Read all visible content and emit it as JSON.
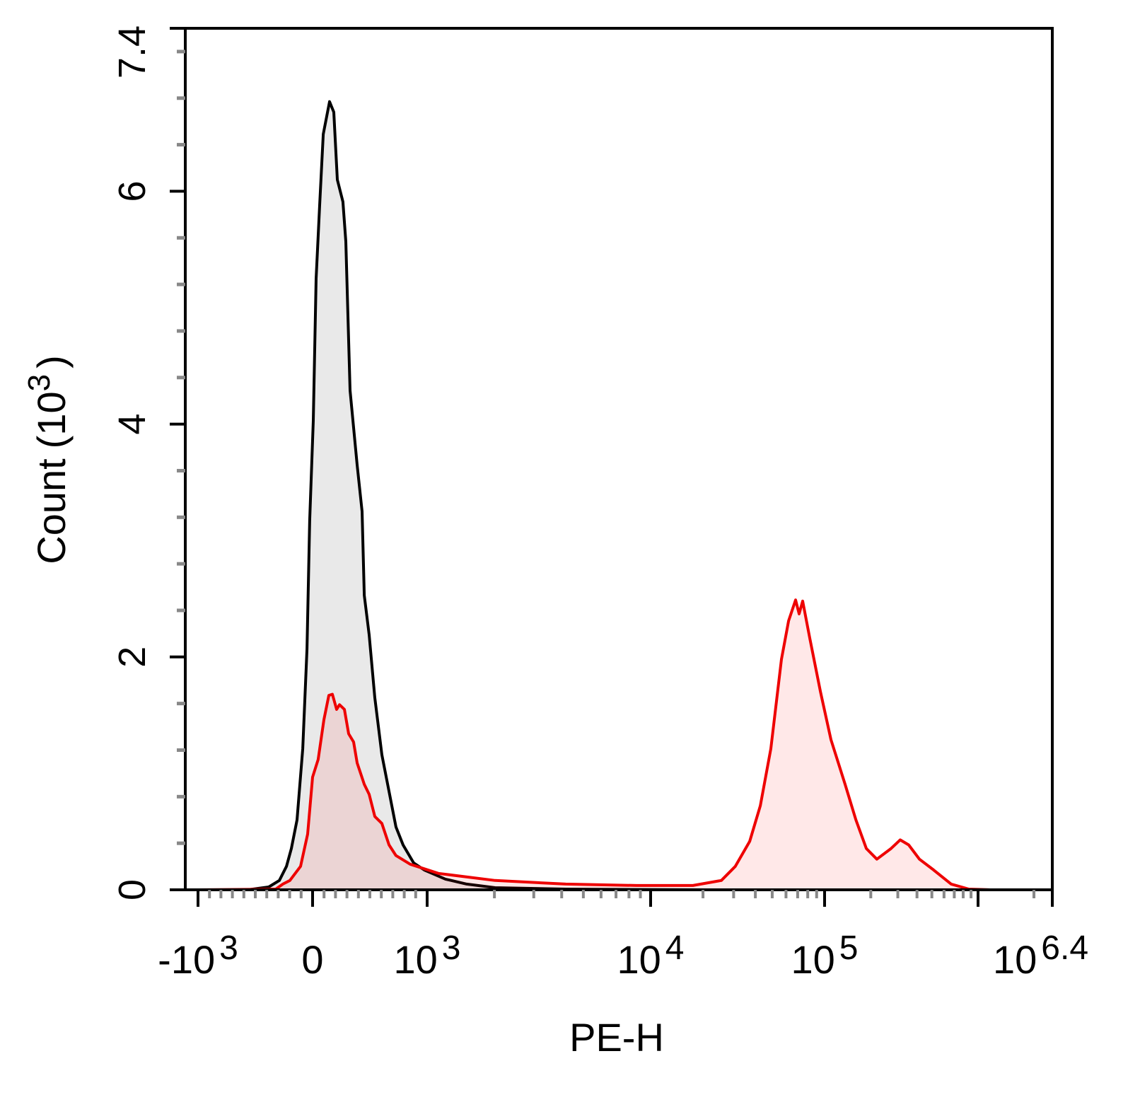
{
  "chart_data": {
    "type": "area",
    "title": "",
    "xlabel": "PE-H",
    "ylabel": {
      "text": "Count",
      "unit_base": "(10",
      "unit_exp": "3",
      "unit_close": ")"
    },
    "x_scale": "biexponential",
    "xlim": [
      -1000,
      2511886
    ],
    "ylim": [
      0,
      7400
    ],
    "grid": false,
    "x_ticks": [
      {
        "value": -1000,
        "base": "-10",
        "exp": "3"
      },
      {
        "value": 0,
        "base": "0",
        "exp": ""
      },
      {
        "value": 1000,
        "base": "10",
        "exp": "3"
      },
      {
        "value": 10000,
        "base": "10",
        "exp": "4"
      },
      {
        "value": 100000,
        "base": "10",
        "exp": "5"
      },
      {
        "value": 2511886,
        "base": "10",
        "exp": "6.4"
      }
    ],
    "y_ticks": [
      {
        "value": 0,
        "label": "0"
      },
      {
        "value": 2000,
        "label": "2"
      },
      {
        "value": 4000,
        "label": "4"
      },
      {
        "value": 6000,
        "label": "6"
      },
      {
        "value": 7400,
        "label": "7.4"
      }
    ],
    "series": [
      {
        "color": "#000000",
        "fill": "#e9e9e9",
        "points": [
          [
            -1000,
            0
          ],
          [
            -568,
            0
          ],
          [
            -383,
            24
          ],
          [
            -290,
            80
          ],
          [
            -228,
            202
          ],
          [
            -185,
            355
          ],
          [
            -136,
            600
          ],
          [
            -86,
            1212
          ],
          [
            -49,
            2070
          ],
          [
            -25,
            3170
          ],
          [
            6,
            4030
          ],
          [
            31,
            5250
          ],
          [
            62,
            5880
          ],
          [
            93,
            6490
          ],
          [
            148,
            6770
          ],
          [
            185,
            6680
          ],
          [
            216,
            6100
          ],
          [
            265,
            5910
          ],
          [
            290,
            5570
          ],
          [
            327,
            4290
          ],
          [
            389,
            3650
          ],
          [
            432,
            3250
          ],
          [
            451,
            2530
          ],
          [
            494,
            2190
          ],
          [
            543,
            1650
          ],
          [
            605,
            1160
          ],
          [
            667,
            845
          ],
          [
            728,
            540
          ],
          [
            790,
            385
          ],
          [
            883,
            230
          ],
          [
            975,
            170
          ],
          [
            1208,
            92
          ],
          [
            1503,
            49
          ],
          [
            2014,
            18
          ],
          [
            4170,
            6
          ],
          [
            21100,
            0
          ],
          [
            2511886,
            0
          ]
        ]
      },
      {
        "color": "#ee0000",
        "fill": "#ff0000",
        "points": [
          [
            -1000,
            0
          ],
          [
            -321,
            6
          ],
          [
            -259,
            49
          ],
          [
            -198,
            80
          ],
          [
            -105,
            202
          ],
          [
            -43,
            478
          ],
          [
            0,
            968
          ],
          [
            49,
            1120
          ],
          [
            99,
            1460
          ],
          [
            142,
            1670
          ],
          [
            173,
            1680
          ],
          [
            210,
            1550
          ],
          [
            235,
            1590
          ],
          [
            278,
            1550
          ],
          [
            315,
            1340
          ],
          [
            358,
            1270
          ],
          [
            389,
            1090
          ],
          [
            451,
            906
          ],
          [
            494,
            820
          ],
          [
            543,
            630
          ],
          [
            605,
            570
          ],
          [
            667,
            386
          ],
          [
            728,
            294
          ],
          [
            852,
            220
          ],
          [
            1124,
            141
          ],
          [
            2014,
            80
          ],
          [
            4170,
            49
          ],
          [
            8650,
            37
          ],
          [
            17500,
            37
          ],
          [
            25500,
            80
          ],
          [
            30700,
            202
          ],
          [
            37100,
            416
          ],
          [
            42700,
            722
          ],
          [
            49100,
            1212
          ],
          [
            56500,
            1980
          ],
          [
            62100,
            2310
          ],
          [
            68100,
            2490
          ],
          [
            71400,
            2370
          ],
          [
            74800,
            2480
          ],
          [
            82200,
            2160
          ],
          [
            94700,
            1700
          ],
          [
            110000,
            1290
          ],
          [
            136000,
            906
          ],
          [
            160000,
            600
          ],
          [
            187000,
            355
          ],
          [
            219000,
            263
          ],
          [
            271000,
            355
          ],
          [
            311000,
            429
          ],
          [
            353000,
            386
          ],
          [
            415000,
            263
          ],
          [
            513000,
            171
          ],
          [
            668000,
            49
          ],
          [
            871000,
            6
          ],
          [
            1160000,
            0
          ],
          [
            2511886,
            0
          ]
        ]
      }
    ]
  }
}
